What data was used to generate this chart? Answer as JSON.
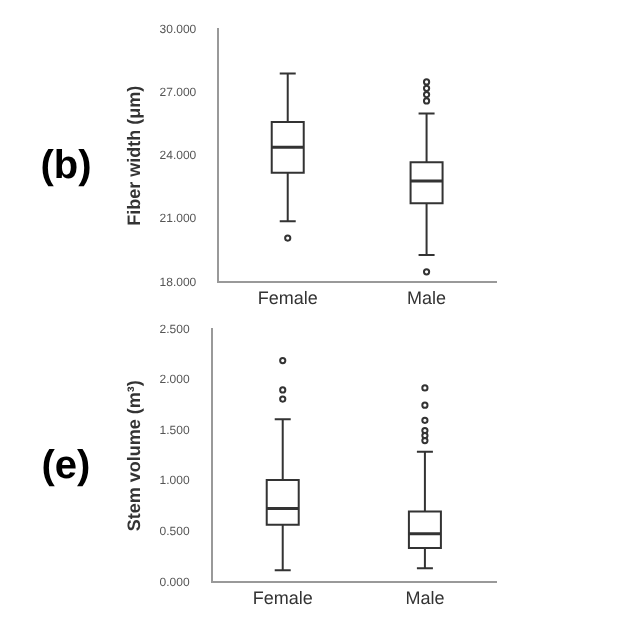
{
  "chart_data": [
    {
      "type": "box",
      "ylabel": "Fiber width (μm)",
      "annotations": [
        "(b)"
      ],
      "categories": [
        "Female",
        "Male"
      ],
      "ylim": [
        18,
        30
      ],
      "yticks": [
        {
          "value": 18,
          "label": "18.000"
        },
        {
          "value": 21,
          "label": "21.000"
        },
        {
          "value": 24,
          "label": "24.000"
        },
        {
          "value": 27,
          "label": "27.000"
        },
        {
          "value": 30,
          "label": "30.000"
        }
      ],
      "grid": false,
      "boxes": [
        {
          "low": 20.9,
          "q1": 23.2,
          "median": 24.4,
          "q3": 25.6,
          "high": 27.9,
          "outliers": [
            20.1
          ]
        },
        {
          "low": 19.3,
          "q1": 21.75,
          "median": 22.8,
          "q3": 23.7,
          "high": 26.0,
          "outliers": [
            18.5,
            26.6,
            26.9,
            27.2,
            27.5
          ]
        }
      ]
    },
    {
      "type": "box",
      "ylabel": "Stem volume (m³)",
      "annotations": [
        "(e)"
      ],
      "categories": [
        "Female",
        "Male"
      ],
      "ylim": [
        0,
        2.5
      ],
      "yticks": [
        {
          "value": 0,
          "label": "0.000"
        },
        {
          "value": 0.5,
          "label": "0.500"
        },
        {
          "value": 1,
          "label": "1.000"
        },
        {
          "value": 1.5,
          "label": "1.500"
        },
        {
          "value": 2,
          "label": "2.000"
        },
        {
          "value": 2.5,
          "label": "2.500"
        }
      ],
      "grid": false,
      "boxes": [
        {
          "low": 0.12,
          "q1": 0.57,
          "median": 0.73,
          "q3": 1.01,
          "high": 1.61,
          "outliers": [
            1.81,
            1.9,
            2.19
          ]
        },
        {
          "low": 0.14,
          "q1": 0.34,
          "median": 0.48,
          "q3": 0.7,
          "high": 1.29,
          "outliers": [
            1.4,
            1.45,
            1.5,
            1.6,
            1.75,
            1.92
          ]
        }
      ]
    }
  ]
}
